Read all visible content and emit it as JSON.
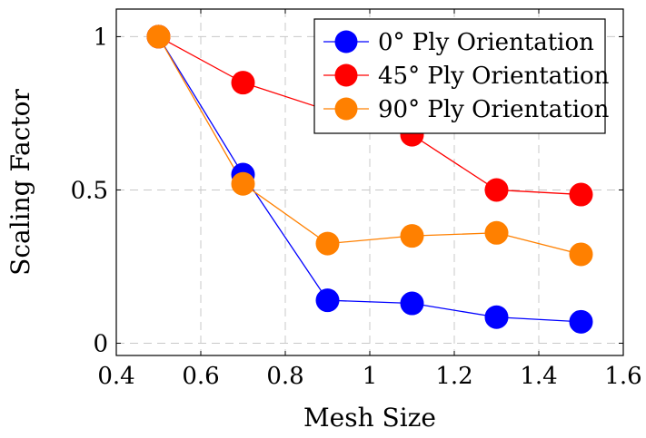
{
  "chart_data": {
    "type": "line",
    "title": "",
    "xlabel": "Mesh Size",
    "ylabel": "Scaling Factor",
    "xlim": [
      0.4,
      1.6
    ],
    "ylim": [
      -0.04,
      1.09
    ],
    "x_ticks": [
      0.4,
      0.6,
      0.8,
      1.0,
      1.2,
      1.4,
      1.6
    ],
    "x_tick_labels": [
      "0.4",
      "0.6",
      "0.8",
      "1",
      "1.2",
      "1.4",
      "1.6"
    ],
    "y_ticks": [
      0,
      0.5,
      1
    ],
    "y_tick_labels": [
      "0",
      "0.5",
      "1"
    ],
    "grid": true,
    "legend_position": "top-right",
    "series": [
      {
        "name": "0° Ply Orientation",
        "color": "#0000ff",
        "x": [
          0.5,
          0.7,
          0.9,
          1.1,
          1.3,
          1.5
        ],
        "y": [
          1.0,
          0.55,
          0.14,
          0.13,
          0.085,
          0.07
        ]
      },
      {
        "name": "45° Ply Orientation",
        "color": "#ff0000",
        "x": [
          0.5,
          0.7,
          0.9,
          1.1,
          1.3,
          1.5
        ],
        "y": [
          1.0,
          0.85,
          0.76,
          0.68,
          0.5,
          0.485
        ]
      },
      {
        "name": "90° Ply Orientation",
        "color": "#ff8000",
        "x": [
          0.5,
          0.7,
          0.9,
          1.1,
          1.3,
          1.5
        ],
        "y": [
          1.0,
          0.52,
          0.325,
          0.35,
          0.36,
          0.29
        ]
      }
    ]
  }
}
